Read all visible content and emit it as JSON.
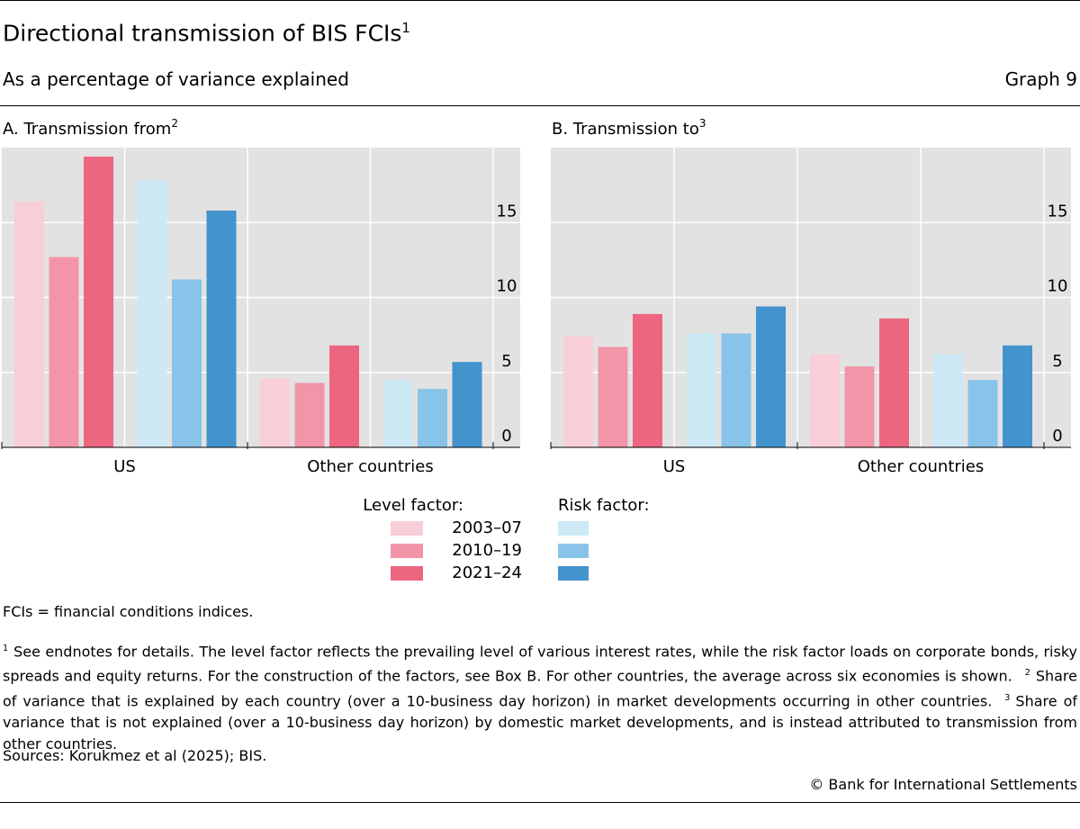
{
  "header": {
    "title": "Directional transmission of BIS FCIs",
    "title_note": "1",
    "subtitle": "As a percentage of variance explained",
    "graph_label": "Graph 9"
  },
  "chart_data": [
    {
      "type": "bar",
      "title": "A. Transmission from",
      "title_note": "2",
      "categories": [
        "US",
        "Other countries"
      ],
      "ylim": [
        0,
        20
      ],
      "yticks": [
        0,
        5,
        10,
        15
      ],
      "grid": true,
      "series": [
        {
          "name": "2003–07",
          "color": "#f9cfd7",
          "values": [
            16.4,
            4.6
          ]
        },
        {
          "name": "2010–19",
          "color": "#f295a8",
          "values": [
            12.7,
            4.3
          ]
        },
        {
          "name": "2021–24",
          "color": "#ec6680",
          "values": [
            19.4,
            6.8
          ]
        }
      ],
      "risk_series": [
        {
          "color": "#cde9f6",
          "values": [
            17.8,
            4.5
          ]
        },
        {
          "color": "#88c3e9",
          "values": [
            11.2,
            3.9
          ]
        },
        {
          "color": "#4393cc",
          "values": [
            15.8,
            5.7
          ]
        }
      ]
    },
    {
      "type": "bar",
      "title": "B. Transmission to",
      "title_note": "3",
      "categories": [
        "US",
        "Other countries"
      ],
      "ylim": [
        0,
        20
      ],
      "yticks": [
        0,
        5,
        10,
        15
      ],
      "grid": true,
      "series": [
        {
          "name": "2003–07",
          "color": "#f9cfd7",
          "values": [
            7.4,
            6.2
          ]
        },
        {
          "name": "2010–19",
          "color": "#f295a8",
          "values": [
            6.7,
            5.4
          ]
        },
        {
          "name": "2021–24",
          "color": "#ec6680",
          "values": [
            8.9,
            8.6
          ]
        }
      ],
      "risk_series": [
        {
          "color": "#cde9f6",
          "values": [
            7.6,
            6.2
          ]
        },
        {
          "color": "#88c3e9",
          "values": [
            7.6,
            4.5
          ]
        },
        {
          "color": "#4393cc",
          "values": [
            9.4,
            6.8
          ]
        }
      ]
    }
  ],
  "legend": {
    "level_title": "Level factor:",
    "risk_title": "Risk factor:"
  },
  "footer": {
    "abbrev": "FCIs = financial conditions indices.",
    "notes": [
      {
        "mark": "1",
        "text": "See endnotes for details. The level factor reflects the prevailing level of various interest rates, while the risk factor loads on corporate bonds, risky spreads and equity returns. For the construction of the factors, see Box B. For other countries, the average across six economies is shown."
      },
      {
        "mark": "2",
        "text": "Share of variance that is explained by each country (over a 10-business day horizon) in market developments occurring in other countries."
      },
      {
        "mark": "3",
        "text": "Share of variance that is not explained (over a 10-business day horizon) by domestic market developments, and is instead attributed to transmission from other countries."
      }
    ],
    "sources": "Sources: Korukmez et al (2025); BIS.",
    "copyright": "© Bank for International Settlements"
  }
}
